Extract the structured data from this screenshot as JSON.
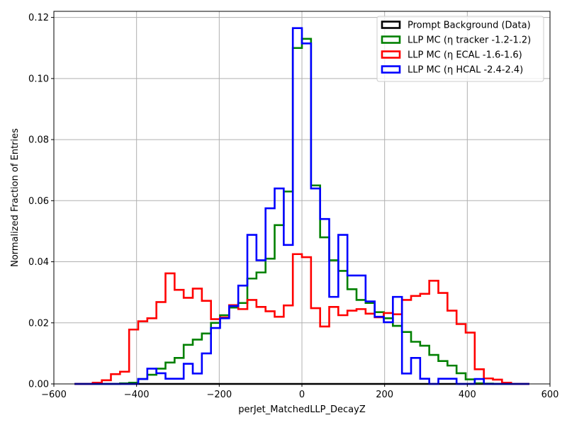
{
  "chart_data": {
    "type": "histogram-step",
    "title": "",
    "xlabel": "perJet_MatchedLLP_DecayZ",
    "ylabel": "Normalized Fraction of Entries",
    "xlim": [
      -600,
      600
    ],
    "ylim": [
      0,
      0.122
    ],
    "xticks": [
      -600,
      -400,
      -200,
      0,
      200,
      400,
      600
    ],
    "yticks": [
      0.0,
      0.02,
      0.04,
      0.06,
      0.08,
      0.1,
      0.12
    ],
    "xtick_labels": [
      "−600",
      "−400",
      "−200",
      "0",
      "200",
      "400",
      "600"
    ],
    "ytick_labels": [
      "0.00",
      "0.02",
      "0.04",
      "0.06",
      "0.08",
      "0.10",
      "0.12"
    ],
    "grid": true,
    "legend_position": "top-right",
    "bin_edges": [
      -550,
      -528,
      -506,
      -484,
      -462,
      -440,
      -418,
      -396,
      -374,
      -352,
      -330,
      -308,
      -286,
      -264,
      -242,
      -220,
      -198,
      -176,
      -154,
      -132,
      -110,
      -88,
      -66,
      -44,
      -22,
      0,
      22,
      44,
      66,
      88,
      110,
      132,
      154,
      176,
      198,
      220,
      242,
      264,
      286,
      308,
      330,
      352,
      374,
      396,
      418,
      440,
      462,
      484,
      506,
      528,
      550
    ],
    "series": [
      {
        "name": "Prompt Background (Data)",
        "color": "#000000",
        "values": [
          0,
          0,
          0,
          0,
          0,
          0,
          0,
          0,
          0,
          0,
          0,
          0,
          0,
          0,
          0,
          0,
          0,
          0,
          0,
          0,
          0,
          0,
          0,
          0,
          0,
          0,
          0,
          0,
          0,
          0,
          0,
          0,
          0,
          0,
          0,
          0,
          0,
          0,
          0,
          0,
          0,
          0,
          0,
          0,
          0,
          0,
          0,
          0,
          0,
          0
        ]
      },
      {
        "name": "LLP MC (η tracker -1.2-1.2)",
        "color": "#008000",
        "values": [
          0,
          0,
          0,
          0,
          0,
          0.0002,
          0.0004,
          0.0016,
          0.003,
          0.005,
          0.007,
          0.0085,
          0.0128,
          0.0145,
          0.0165,
          0.02,
          0.0225,
          0.025,
          0.0265,
          0.0345,
          0.0365,
          0.041,
          0.052,
          0.063,
          0.11,
          0.113,
          0.065,
          0.048,
          0.0405,
          0.037,
          0.031,
          0.0275,
          0.0265,
          0.0235,
          0.0215,
          0.019,
          0.017,
          0.0138,
          0.0125,
          0.0095,
          0.0075,
          0.006,
          0.0035,
          0.0015,
          0.0002,
          0.0001,
          0,
          0,
          0,
          0
        ]
      },
      {
        "name": "LLP MC (η ECAL -1.6-1.6)",
        "color": "#ff0000",
        "values": [
          0,
          0,
          0.0004,
          0.0012,
          0.0032,
          0.004,
          0.0178,
          0.0205,
          0.0215,
          0.0268,
          0.0362,
          0.0308,
          0.0282,
          0.0312,
          0.0272,
          0.0212,
          0.0218,
          0.0258,
          0.0245,
          0.0275,
          0.0252,
          0.0238,
          0.022,
          0.0257,
          0.0425,
          0.0415,
          0.0248,
          0.0188,
          0.0252,
          0.0225,
          0.024,
          0.0245,
          0.023,
          0.0218,
          0.0232,
          0.0228,
          0.0275,
          0.0288,
          0.0295,
          0.0338,
          0.0298,
          0.024,
          0.0196,
          0.0168,
          0.0048,
          0.0018,
          0.0014,
          0.0004,
          0,
          0
        ]
      },
      {
        "name": "LLP MC (η HCAL -2.4-2.4)",
        "color": "#0000ff",
        "values": [
          0,
          0,
          0,
          0,
          0,
          0,
          0,
          0.0016,
          0.005,
          0.0035,
          0.0017,
          0.0017,
          0.0066,
          0.0034,
          0.01,
          0.0183,
          0.0215,
          0.0255,
          0.0322,
          0.0488,
          0.0405,
          0.0575,
          0.064,
          0.0455,
          0.1165,
          0.1115,
          0.064,
          0.054,
          0.0285,
          0.0488,
          0.0355,
          0.0355,
          0.027,
          0.022,
          0.0202,
          0.0285,
          0.0034,
          0.0085,
          0.0017,
          0,
          0.0017,
          0.0017,
          0,
          0,
          0.0016,
          0,
          0,
          0,
          0,
          0
        ]
      }
    ]
  }
}
